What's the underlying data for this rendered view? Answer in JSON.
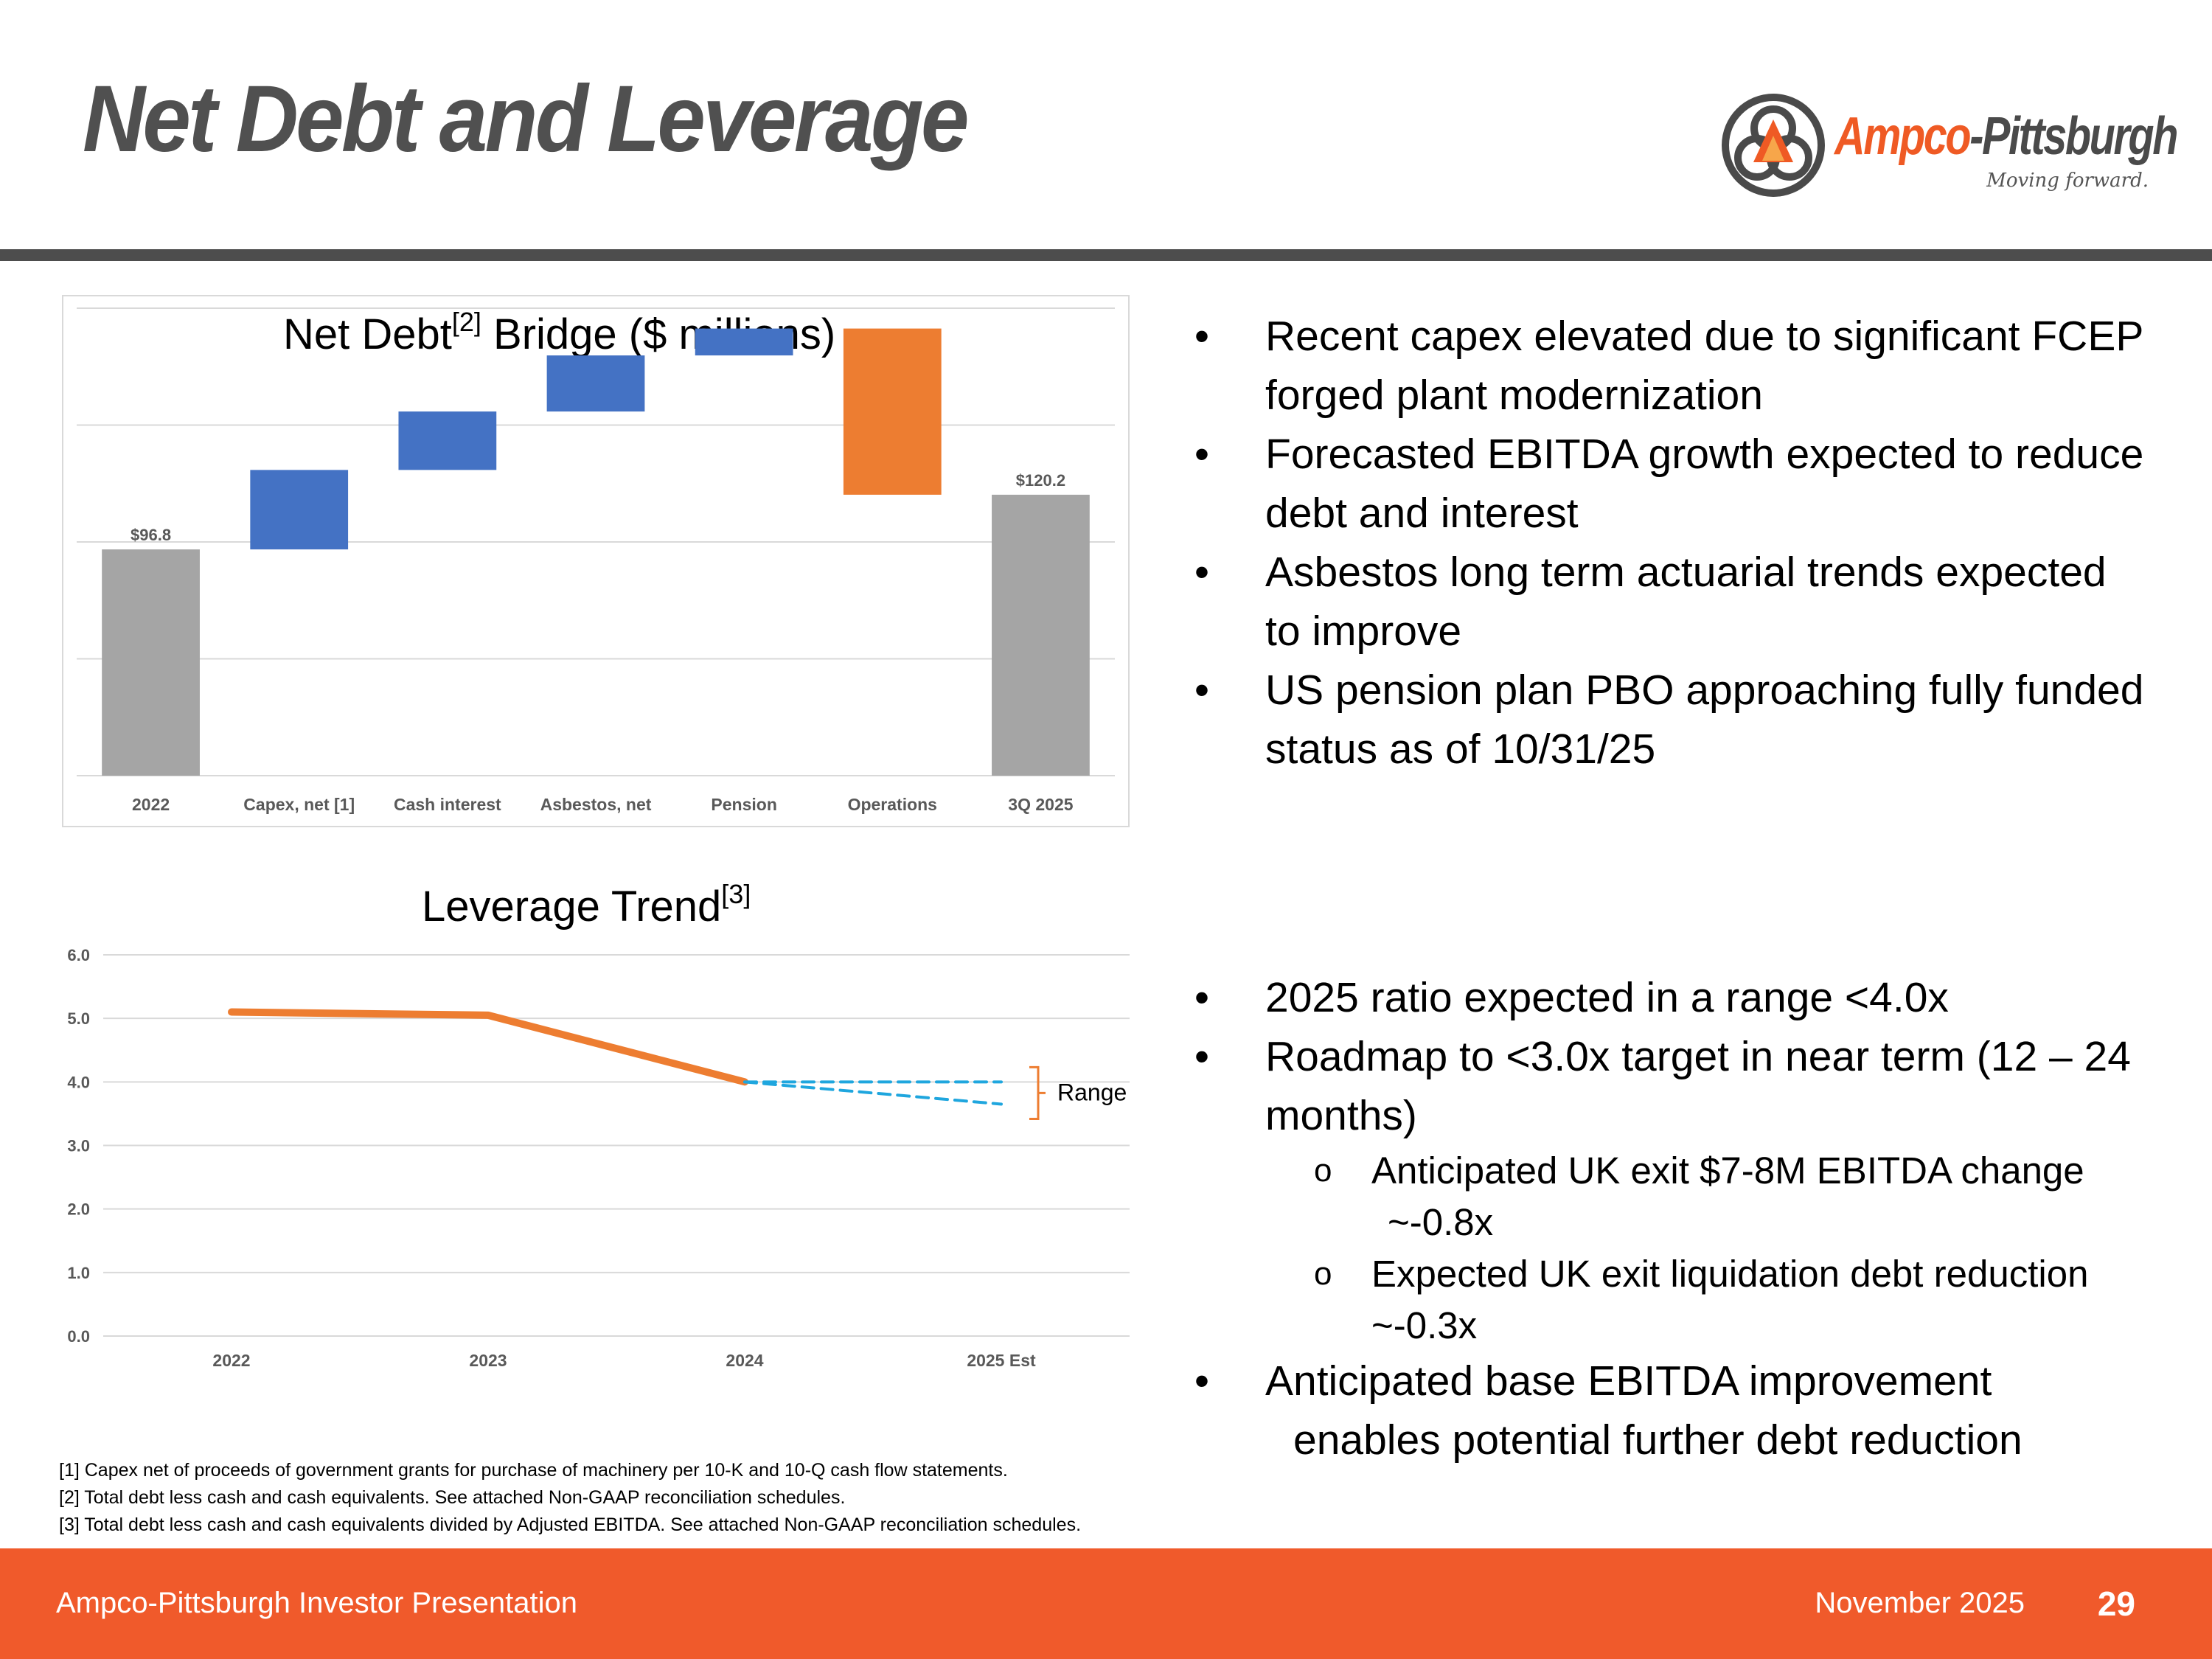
{
  "slide": {
    "title": "Net Debt and Leverage"
  },
  "logo": {
    "name_part1": "Ampco",
    "name_part2": "-Pittsburgh",
    "tagline": "Moving forward."
  },
  "colors": {
    "accent_orange": "#f05a2b",
    "bar_blue": "#4472c4",
    "bar_gray": "#a5a5a5",
    "bar_orange": "#ed7d31",
    "line_orange": "#ed7d31",
    "range_blue": "#1fa6de",
    "rule_gray": "#4d4d4d"
  },
  "chart_data": [
    {
      "type": "bar",
      "subtype": "waterfall",
      "title_main": "Net Debt",
      "title_sup": "[2]",
      "title_rest": " Bridge ($ millions)",
      "categories": [
        "2022",
        "Capex, net [1]",
        "Cash interest",
        "Asbestos, net",
        "Pension",
        "Operations",
        "3Q 2025"
      ],
      "steps": [
        {
          "label": "2022",
          "kind": "total",
          "value": 96.8,
          "data_label": "$96.8"
        },
        {
          "label": "Capex, net [1]",
          "kind": "increase",
          "value": 34.0
        },
        {
          "label": "Cash interest",
          "kind": "increase",
          "value": 25.0
        },
        {
          "label": "Asbestos, net",
          "kind": "increase",
          "value": 24.0
        },
        {
          "label": "Pension",
          "kind": "increase",
          "value": 11.5
        },
        {
          "label": "Operations",
          "kind": "decrease",
          "value": -71.1
        },
        {
          "label": "3Q 2025",
          "kind": "total",
          "value": 120.2,
          "data_label": "$120.2"
        }
      ],
      "ylim": [
        0,
        200
      ],
      "grid": true,
      "gridlines": [
        0,
        50,
        100,
        150,
        200
      ]
    },
    {
      "type": "line",
      "title_main": "Leverage Trend",
      "title_sup": "[3]",
      "categories": [
        "2022",
        "2023",
        "2024",
        "2025 Est"
      ],
      "series": [
        {
          "name": "Leverage",
          "values": [
            5.1,
            5.05,
            4.0,
            null
          ]
        },
        {
          "name": "Range upper",
          "style": "dashed",
          "values": [
            null,
            null,
            4.0,
            4.0
          ]
        },
        {
          "name": "Range lower",
          "style": "dashed",
          "values": [
            null,
            null,
            4.0,
            3.65
          ]
        }
      ],
      "yticks": [
        "0.0",
        "1.0",
        "2.0",
        "3.0",
        "4.0",
        "5.0",
        "6.0"
      ],
      "ylim": [
        0,
        6
      ],
      "annotation": "Range",
      "grid": true
    }
  ],
  "bullets_top": [
    "Recent capex elevated due to significant FCEP forged plant modernization",
    "Forecasted EBITDA growth expected to reduce debt and interest",
    "Asbestos long term actuarial trends expected to improve",
    "US pension plan PBO approaching fully funded status as of 10/31/25"
  ],
  "bullets_bottom": {
    "b1": "2025 ratio expected in a range <4.0x",
    "b2": "Roadmap to <3.0x target in near term (12 – 24 months)",
    "sub_marker": "o",
    "sub1_line1": "Anticipated UK exit $7-8M EBITDA change",
    "sub1_line2": "~-0.8x",
    "sub2_line1": "Expected UK exit liquidation debt reduction",
    "sub2_line2": "~-0.3x",
    "b3_line1": "Anticipated base EBITDA improvement",
    "b3_line2": "enables potential further debt reduction"
  },
  "footnotes": [
    "[1] Capex net of proceeds of government grants for purchase of machinery per 10-K and 10-Q cash flow statements.",
    "[2] Total debt less cash and cash equivalents. See attached Non-GAAP reconciliation schedules.",
    "[3] Total debt less cash and cash equivalents divided by Adjusted EBITDA. See attached Non-GAAP reconciliation schedules."
  ],
  "footer": {
    "left": "Ampco-Pittsburgh Investor Presentation",
    "date": "November 2025",
    "page": "29"
  }
}
